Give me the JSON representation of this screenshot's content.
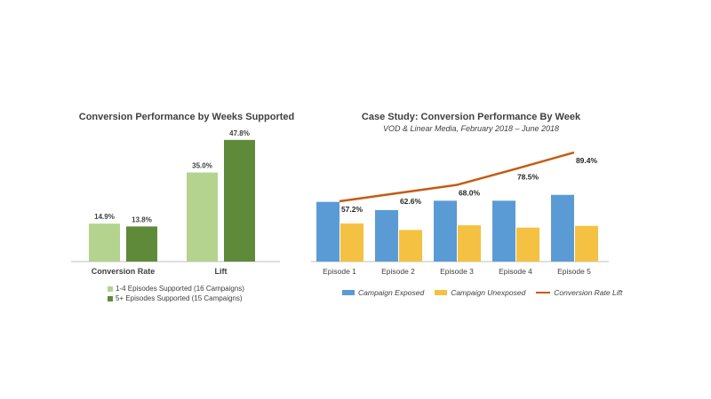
{
  "chart_data": [
    {
      "type": "bar",
      "title": "Conversion Performance by Weeks Supported",
      "categories": [
        "Conversion Rate",
        "Lift"
      ],
      "series": [
        {
          "name": "1-4 Episodes Supported (16 Campaigns)",
          "values": [
            14.9,
            35.0
          ],
          "labels": [
            "14.9%",
            "35.0%"
          ],
          "color": "#b3d38f"
        },
        {
          "name": "5+ Episodes Supported (15 Campaigns)",
          "values": [
            13.8,
            47.8
          ],
          "labels": [
            "13.8%",
            "47.8%"
          ],
          "color": "#5f8a3a"
        }
      ],
      "legend": "bottom",
      "grid": false
    },
    {
      "type": "bar",
      "title": "Case Study: Conversion Performance By Week",
      "subtitle": "VOD & Linear Media, February 2018 – June 2018",
      "categories": [
        "Episode 1",
        "Episode 2",
        "Episode 3",
        "Episode 4",
        "Episode 5"
      ],
      "series": [
        {
          "name": "Campaign Exposed",
          "type": "bar",
          "values": [
            10.2,
            8.8,
            10.4,
            10.4,
            11.4
          ],
          "color": "#5b9bd5"
        },
        {
          "name": "Campaign Unexposed",
          "type": "bar",
          "values": [
            6.5,
            5.4,
            6.2,
            5.8,
            6.1
          ],
          "color": "#f4c142"
        },
        {
          "name": "Conversion Rate Lift",
          "type": "line",
          "values": [
            57.2,
            62.6,
            68.0,
            78.5,
            89.4
          ],
          "labels": [
            "57.2%",
            "62.6%",
            "68.0%",
            "78.5%",
            "89.4%"
          ],
          "color": "#c55a11"
        }
      ],
      "legend": "bottom",
      "grid": false
    }
  ]
}
